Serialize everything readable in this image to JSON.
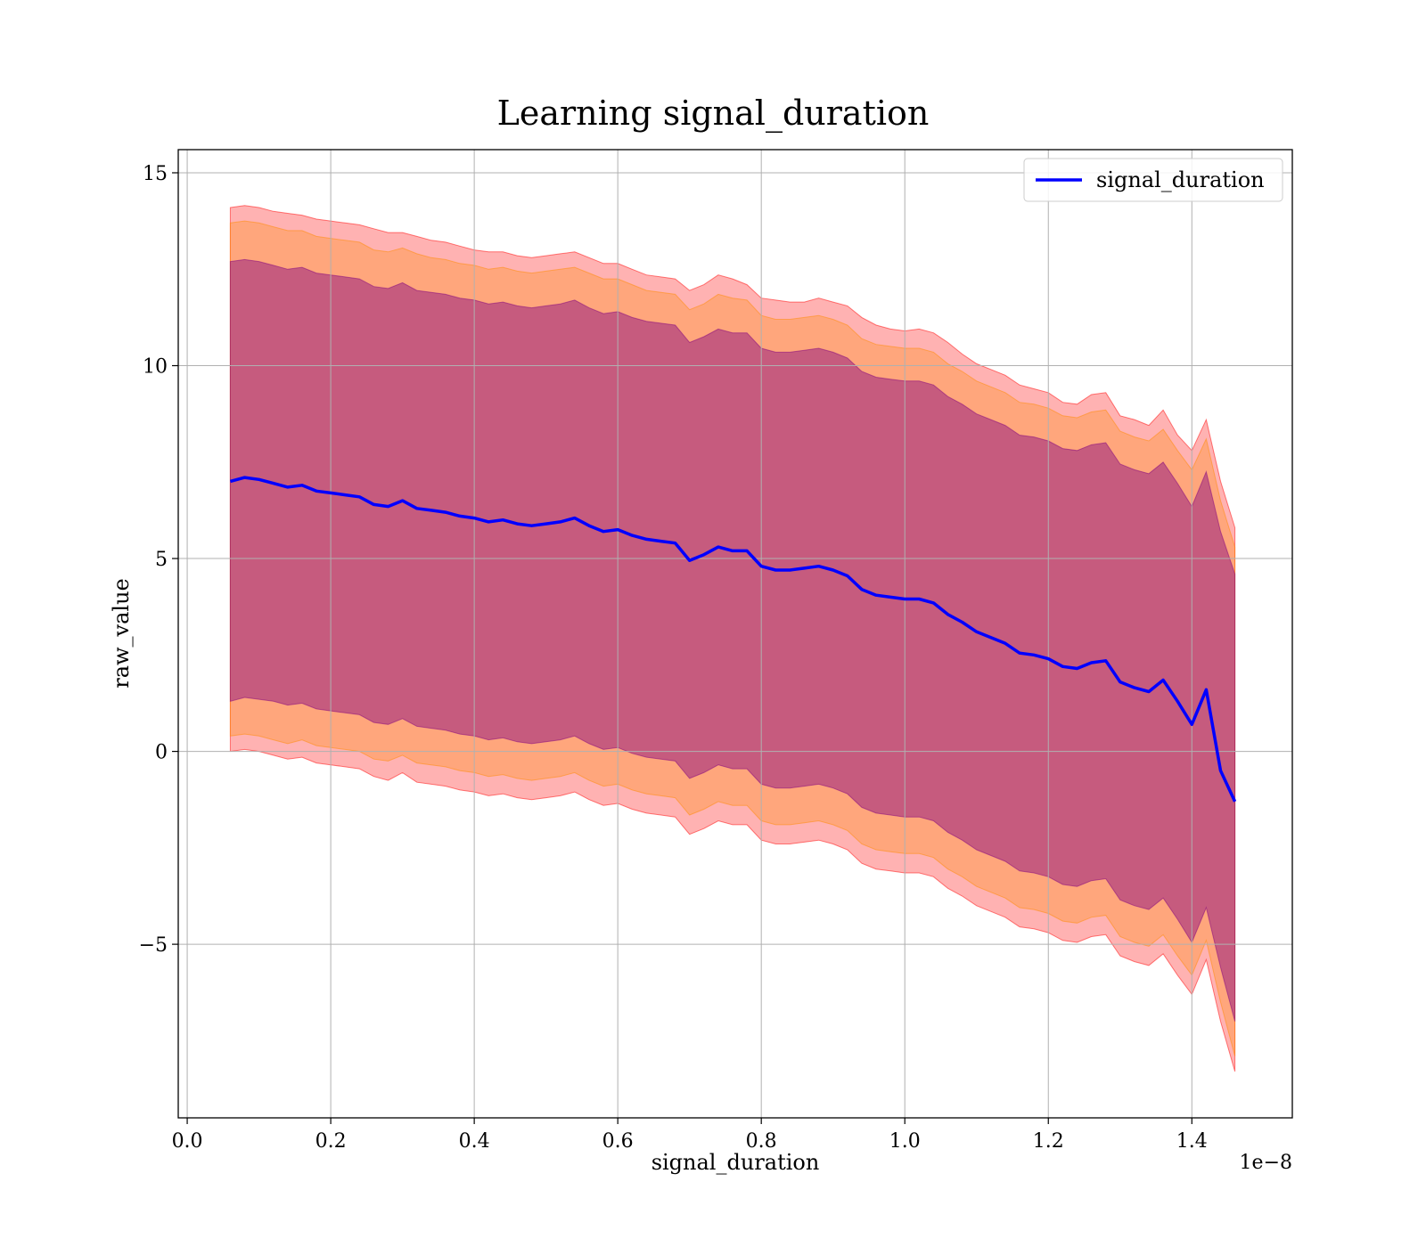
{
  "chart_data": {
    "type": "line",
    "title": "Learning signal_duration",
    "xlabel": "signal_duration",
    "ylabel": "raw_value",
    "x_offset_label": "1e−8",
    "x_ticks": [
      "0.0",
      "0.2",
      "0.4",
      "0.6",
      "0.8",
      "1.0",
      "1.2",
      "1.4"
    ],
    "y_ticks": [
      "−5",
      "0",
      "5",
      "10",
      "15"
    ],
    "xlim": [
      -0.0125,
      1.54
    ],
    "ylim": [
      -9.5,
      15.6
    ],
    "grid": true,
    "legend": {
      "position": "top-right",
      "entries": [
        "signal_duration"
      ]
    },
    "colors": {
      "mean": "#0000ff",
      "band_outer": "#ff0000",
      "band_mid": "#ff8c00",
      "band_inner": "#800080"
    },
    "series": [
      {
        "name": "signal_duration",
        "x": [
          0.06,
          0.08,
          0.1,
          0.12,
          0.14,
          0.16,
          0.18,
          0.2,
          0.22,
          0.24,
          0.26,
          0.28,
          0.3,
          0.32,
          0.34,
          0.36,
          0.38,
          0.4,
          0.42,
          0.44,
          0.46,
          0.48,
          0.5,
          0.52,
          0.54,
          0.56,
          0.58,
          0.6,
          0.62,
          0.64,
          0.66,
          0.68,
          0.7,
          0.72,
          0.74,
          0.76,
          0.78,
          0.8,
          0.82,
          0.84,
          0.86,
          0.88,
          0.9,
          0.92,
          0.94,
          0.96,
          0.98,
          1.0,
          1.02,
          1.04,
          1.06,
          1.08,
          1.1,
          1.12,
          1.14,
          1.16,
          1.18,
          1.2,
          1.22,
          1.24,
          1.26,
          1.28,
          1.3,
          1.32,
          1.34,
          1.36,
          1.38,
          1.4,
          1.42,
          1.44,
          1.46
        ],
        "values": [
          7.0,
          7.1,
          7.05,
          6.95,
          6.85,
          6.9,
          6.75,
          6.7,
          6.65,
          6.6,
          6.4,
          6.35,
          6.5,
          6.3,
          6.25,
          6.2,
          6.1,
          6.05,
          5.95,
          6.0,
          5.9,
          5.85,
          5.9,
          5.95,
          6.05,
          5.85,
          5.7,
          5.75,
          5.6,
          5.5,
          5.45,
          5.4,
          4.95,
          5.1,
          5.3,
          5.2,
          5.2,
          4.8,
          4.7,
          4.7,
          4.75,
          4.8,
          4.7,
          4.55,
          4.2,
          4.05,
          4.0,
          3.95,
          3.95,
          3.85,
          3.55,
          3.35,
          3.1,
          2.95,
          2.8,
          2.55,
          2.5,
          2.4,
          2.2,
          2.15,
          2.3,
          2.35,
          1.8,
          1.65,
          1.55,
          1.85,
          1.3,
          0.7,
          1.6,
          -0.5,
          -1.3
        ],
        "bands": [
          {
            "name": "outer",
            "upper": [
              14.1,
              14.15,
              14.1,
              14.0,
              13.95,
              13.9,
              13.8,
              13.75,
              13.7,
              13.65,
              13.55,
              13.45,
              13.45,
              13.35,
              13.25,
              13.2,
              13.1,
              13.0,
              12.95,
              12.95,
              12.85,
              12.8,
              12.85,
              12.9,
              12.95,
              12.8,
              12.65,
              12.65,
              12.5,
              12.35,
              12.3,
              12.25,
              11.95,
              12.1,
              12.35,
              12.25,
              12.1,
              11.75,
              11.7,
              11.65,
              11.65,
              11.75,
              11.65,
              11.55,
              11.25,
              11.05,
              10.95,
              10.9,
              10.95,
              10.85,
              10.6,
              10.3,
              10.05,
              9.9,
              9.75,
              9.5,
              9.4,
              9.3,
              9.05,
              9.0,
              9.25,
              9.3,
              8.7,
              8.6,
              8.45,
              8.85,
              8.2,
              7.8,
              8.6,
              7.0,
              5.8
            ],
            "lower": [
              0.0,
              0.05,
              0.0,
              -0.1,
              -0.2,
              -0.15,
              -0.3,
              -0.35,
              -0.4,
              -0.45,
              -0.65,
              -0.75,
              -0.55,
              -0.8,
              -0.85,
              -0.9,
              -1.0,
              -1.05,
              -1.15,
              -1.1,
              -1.2,
              -1.25,
              -1.2,
              -1.15,
              -1.05,
              -1.25,
              -1.4,
              -1.35,
              -1.5,
              -1.6,
              -1.65,
              -1.7,
              -2.15,
              -2.0,
              -1.8,
              -1.9,
              -1.9,
              -2.3,
              -2.4,
              -2.4,
              -2.35,
              -2.3,
              -2.4,
              -2.55,
              -2.9,
              -3.05,
              -3.1,
              -3.15,
              -3.15,
              -3.25,
              -3.55,
              -3.75,
              -4.0,
              -4.15,
              -4.3,
              -4.55,
              -4.6,
              -4.7,
              -4.9,
              -4.95,
              -4.8,
              -4.75,
              -5.3,
              -5.45,
              -5.55,
              -5.25,
              -5.8,
              -6.3,
              -5.4,
              -7.0,
              -8.3
            ]
          },
          {
            "name": "mid",
            "upper": [
              13.7,
              13.75,
              13.7,
              13.6,
              13.5,
              13.5,
              13.35,
              13.3,
              13.25,
              13.2,
              13.0,
              12.95,
              13.05,
              12.9,
              12.8,
              12.75,
              12.65,
              12.6,
              12.5,
              12.55,
              12.45,
              12.4,
              12.45,
              12.5,
              12.55,
              12.4,
              12.25,
              12.25,
              12.1,
              11.95,
              11.9,
              11.85,
              11.45,
              11.6,
              11.85,
              11.75,
              11.7,
              11.3,
              11.2,
              11.2,
              11.25,
              11.3,
              11.2,
              11.05,
              10.7,
              10.55,
              10.5,
              10.45,
              10.45,
              10.35,
              10.05,
              9.85,
              9.6,
              9.45,
              9.3,
              9.05,
              9.0,
              8.9,
              8.7,
              8.65,
              8.8,
              8.85,
              8.3,
              8.15,
              8.05,
              8.35,
              7.8,
              7.3,
              8.1,
              6.5,
              5.3
            ],
            "lower": [
              0.4,
              0.45,
              0.4,
              0.3,
              0.2,
              0.3,
              0.15,
              0.1,
              0.05,
              0.0,
              -0.2,
              -0.25,
              -0.1,
              -0.3,
              -0.35,
              -0.4,
              -0.5,
              -0.55,
              -0.65,
              -0.6,
              -0.7,
              -0.75,
              -0.7,
              -0.65,
              -0.55,
              -0.75,
              -0.9,
              -0.85,
              -1.0,
              -1.1,
              -1.15,
              -1.2,
              -1.65,
              -1.5,
              -1.3,
              -1.4,
              -1.4,
              -1.8,
              -1.9,
              -1.9,
              -1.85,
              -1.8,
              -1.9,
              -2.05,
              -2.4,
              -2.55,
              -2.6,
              -2.65,
              -2.65,
              -2.75,
              -3.05,
              -3.25,
              -3.5,
              -3.65,
              -3.8,
              -4.05,
              -4.1,
              -4.2,
              -4.4,
              -4.45,
              -4.3,
              -4.25,
              -4.8,
              -4.95,
              -5.05,
              -4.75,
              -5.3,
              -5.8,
              -4.9,
              -6.5,
              -7.9
            ]
          },
          {
            "name": "inner",
            "upper": [
              12.7,
              12.75,
              12.7,
              12.6,
              12.5,
              12.55,
              12.4,
              12.35,
              12.3,
              12.25,
              12.05,
              12.0,
              12.15,
              11.95,
              11.9,
              11.85,
              11.75,
              11.7,
              11.6,
              11.65,
              11.55,
              11.5,
              11.55,
              11.6,
              11.7,
              11.5,
              11.35,
              11.4,
              11.25,
              11.15,
              11.1,
              11.05,
              10.6,
              10.75,
              10.95,
              10.85,
              10.85,
              10.45,
              10.35,
              10.35,
              10.4,
              10.45,
              10.35,
              10.2,
              9.85,
              9.7,
              9.65,
              9.6,
              9.6,
              9.5,
              9.2,
              9.0,
              8.75,
              8.6,
              8.45,
              8.2,
              8.15,
              8.05,
              7.85,
              7.8,
              7.95,
              8.0,
              7.45,
              7.3,
              7.2,
              7.5,
              6.95,
              6.35,
              7.25,
              5.7,
              4.6
            ],
            "lower": [
              1.3,
              1.4,
              1.35,
              1.3,
              1.2,
              1.25,
              1.1,
              1.05,
              1.0,
              0.95,
              0.75,
              0.7,
              0.85,
              0.65,
              0.6,
              0.55,
              0.45,
              0.4,
              0.3,
              0.35,
              0.25,
              0.2,
              0.25,
              0.3,
              0.4,
              0.2,
              0.05,
              0.1,
              -0.05,
              -0.15,
              -0.2,
              -0.25,
              -0.7,
              -0.55,
              -0.35,
              -0.45,
              -0.45,
              -0.85,
              -0.95,
              -0.95,
              -0.9,
              -0.85,
              -0.95,
              -1.1,
              -1.45,
              -1.6,
              -1.65,
              -1.7,
              -1.7,
              -1.8,
              -2.1,
              -2.3,
              -2.55,
              -2.7,
              -2.85,
              -3.1,
              -3.15,
              -3.25,
              -3.45,
              -3.5,
              -3.35,
              -3.3,
              -3.85,
              -4.0,
              -4.1,
              -3.8,
              -4.35,
              -4.95,
              -4.05,
              -5.6,
              -7.0
            ]
          }
        ]
      }
    ]
  }
}
